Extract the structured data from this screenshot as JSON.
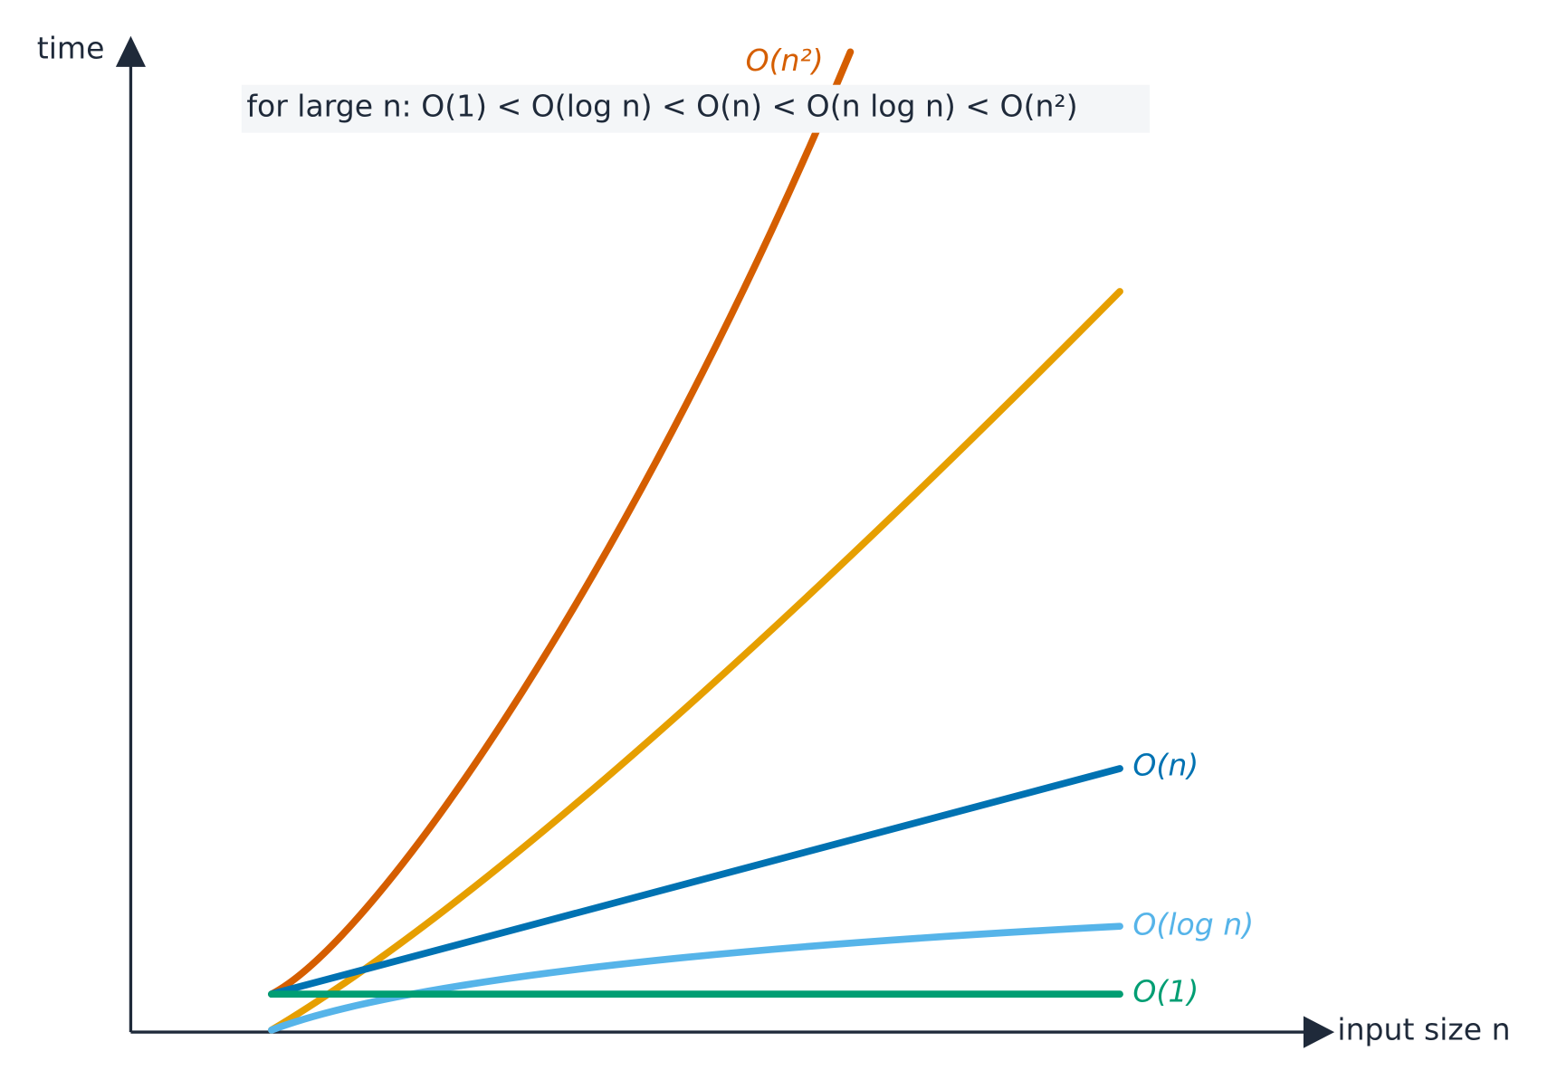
{
  "axes": {
    "y_label": "time",
    "x_label": "input size n"
  },
  "note": "for large n:  O(1) < O(log n) < O(n) < O(n log n) < O(n²)",
  "curve_labels": [
    "O(n²)",
    "O(n)",
    "O(log n)",
    "O(1)"
  ]
}
